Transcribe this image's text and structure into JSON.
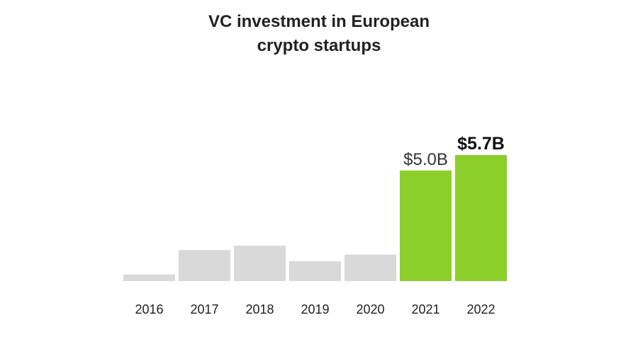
{
  "chart_data": {
    "type": "bar",
    "title_lines": [
      "VC investment in European",
      "crypto startups"
    ],
    "categories": [
      "2016",
      "2017",
      "2018",
      "2019",
      "2020",
      "2021",
      "2022"
    ],
    "values": [
      0.3,
      1.4,
      1.6,
      0.9,
      1.2,
      5.0,
      5.7
    ],
    "data_labels": [
      "",
      "",
      "",
      "",
      "",
      "$5.0B",
      "$5.7B"
    ],
    "bold_labels": [
      false,
      false,
      false,
      false,
      false,
      false,
      true
    ],
    "bar_colors": [
      "#d9d9d9",
      "#d9d9d9",
      "#d9d9d9",
      "#d9d9d9",
      "#d9d9d9",
      "#8ccf2a",
      "#8ccf2a"
    ],
    "unit": "$B",
    "ylim": [
      0,
      5.7
    ],
    "grid": false,
    "legend": "none"
  }
}
